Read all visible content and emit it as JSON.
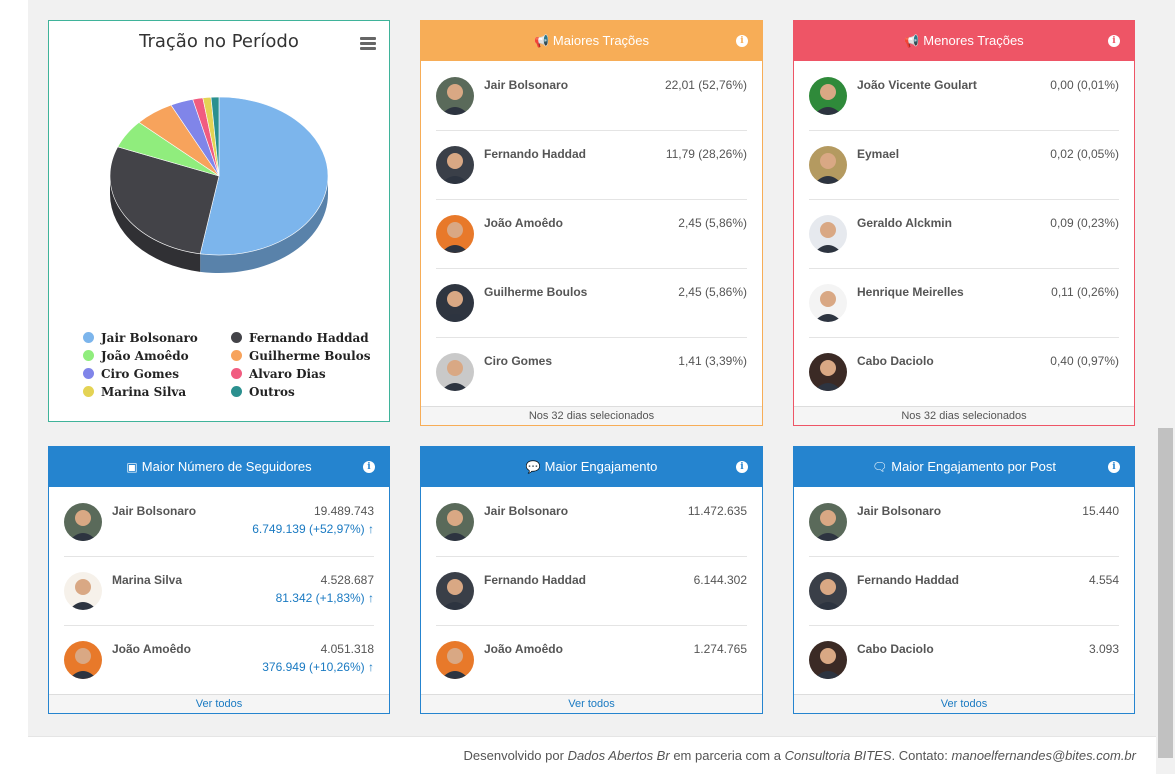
{
  "chart": {
    "title": "Tração no Período",
    "menu_icon": "hamburger-menu-icon",
    "legend": [
      {
        "label": "Jair Bolsonaro",
        "color": "#7cb5ec"
      },
      {
        "label": "Fernando Haddad",
        "color": "#434348"
      },
      {
        "label": "João Amoêdo",
        "color": "#90ed7d"
      },
      {
        "label": "Guilherme Boulos",
        "color": "#f7a35c"
      },
      {
        "label": "Ciro Gomes",
        "color": "#8085e9"
      },
      {
        "label": "Alvaro Dias",
        "color": "#f15c80"
      },
      {
        "label": "Marina Silva",
        "color": "#e4d354"
      },
      {
        "label": "Outros",
        "color": "#2b908f"
      }
    ]
  },
  "chart_data": {
    "type": "pie",
    "title": "Tração no Período",
    "categories": [
      "Jair Bolsonaro",
      "Fernando Haddad",
      "João Amoêdo",
      "Guilherme Boulos",
      "Ciro Gomes",
      "Alvaro Dias",
      "Marina Silva",
      "Outros"
    ],
    "values": [
      52.76,
      28.26,
      5.86,
      5.86,
      3.39,
      1.5,
      1.2,
      1.17
    ],
    "colors": [
      "#7cb5ec",
      "#434348",
      "#90ed7d",
      "#f7a35c",
      "#8085e9",
      "#f15c80",
      "#e4d354",
      "#2b908f"
    ],
    "legend_position": "bottom"
  },
  "maiores": {
    "title": "Maiores Trações",
    "icon": "megaphone-icon",
    "footer": "Nos 32 dias selecionados",
    "rows": [
      {
        "name": "Jair Bolsonaro",
        "value": "22,01 (52,76%)",
        "color": "#5a6a5a"
      },
      {
        "name": "Fernando Haddad",
        "value": "11,79 (28,26%)",
        "color": "#3a3f48"
      },
      {
        "name": "João Amoêdo",
        "value": "2,45 (5,86%)",
        "color": "#e8792a"
      },
      {
        "name": "Guilherme Boulos",
        "value": "2,45 (5,86%)",
        "color": "#2f3540"
      },
      {
        "name": "Ciro Gomes",
        "value": "1,41 (3,39%)",
        "color": "#c9c9c9"
      }
    ]
  },
  "menores": {
    "title": "Menores Trações",
    "icon": "megaphone-icon",
    "footer": "Nos 32 dias selecionados",
    "rows": [
      {
        "name": "João Vicente Goulart",
        "value": "0,00 (0,01%)",
        "color": "#2f8a3a"
      },
      {
        "name": "Eymael",
        "value": "0,02 (0,05%)",
        "color": "#b49a60"
      },
      {
        "name": "Geraldo Alckmin",
        "value": "0,09 (0,23%)",
        "color": "#e6e9ee"
      },
      {
        "name": "Henrique Meirelles",
        "value": "0,11 (0,26%)",
        "color": "#f4f4f4"
      },
      {
        "name": "Cabo Daciolo",
        "value": "0,40 (0,97%)",
        "color": "#3b2a25"
      }
    ]
  },
  "seguidores": {
    "title": "Maior Número de Seguidores",
    "icon": "sitemap-icon",
    "footer": "Ver todos",
    "rows": [
      {
        "name": "Jair Bolsonaro",
        "value": "19.489.743",
        "delta": "6.749.139 (+52,97%)",
        "color": "#5a6a5a"
      },
      {
        "name": "Marina Silva",
        "value": "4.528.687",
        "delta": "81.342 (+1,83%)",
        "color": "#f6f1ea"
      },
      {
        "name": "João Amoêdo",
        "value": "4.051.318",
        "delta": "376.949 (+10,26%)",
        "color": "#e8792a"
      }
    ]
  },
  "engajamento": {
    "title": "Maior Engajamento",
    "icon": "comments-icon",
    "footer": "Ver todos",
    "rows": [
      {
        "name": "Jair Bolsonaro",
        "value": "11.472.635",
        "color": "#5a6a5a"
      },
      {
        "name": "Fernando Haddad",
        "value": "6.144.302",
        "color": "#3a3f48"
      },
      {
        "name": "João Amoêdo",
        "value": "1.274.765",
        "color": "#e8792a"
      }
    ]
  },
  "engajamento_post": {
    "title": "Maior Engajamento por Post",
    "icon": "comment-icon",
    "footer": "Ver todos",
    "rows": [
      {
        "name": "Jair Bolsonaro",
        "value": "15.440",
        "color": "#5a6a5a"
      },
      {
        "name": "Fernando Haddad",
        "value": "4.554",
        "color": "#3a3f48"
      },
      {
        "name": "Cabo Daciolo",
        "value": "3.093",
        "color": "#3b2a25"
      }
    ]
  },
  "footer": {
    "prefix": "Desenvolvido por",
    "author": "Dados Abertos Br",
    "mid": "em parceria com a",
    "partner": "Consultoria BITES",
    "contact_label": ". Contato:",
    "email": "manoelfernandes@bites.com.br"
  }
}
